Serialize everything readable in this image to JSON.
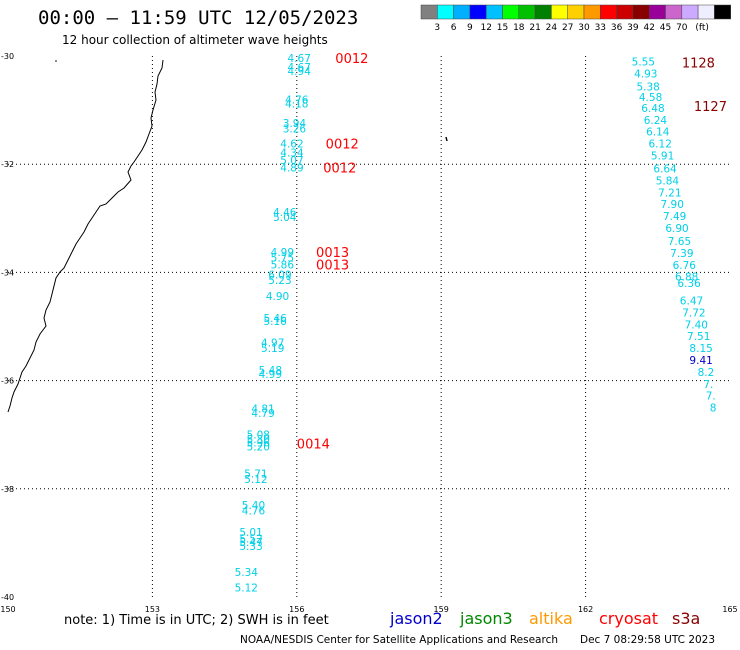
{
  "header": {
    "title": "00:00 — 11:59 UTC 12/05/2023",
    "subtitle": "12 hour collection of altimeter wave heights"
  },
  "legend": {
    "colors": [
      "#808080",
      "#00ffff",
      "#00b0ff",
      "#0000ff",
      "#00c0ff",
      "#00ff00",
      "#00c000",
      "#008000",
      "#ffff00",
      "#ffd000",
      "#ff9900",
      "#ff0000",
      "#cc0000",
      "#880000",
      "#990099",
      "#cc66cc",
      "#ccaaff",
      "#eeeeff",
      "#000000"
    ],
    "labels": [
      "3",
      "6",
      "9",
      "12",
      "15",
      "18",
      "21",
      "24",
      "27",
      "30",
      "33",
      "36",
      "39",
      "42",
      "45",
      "70",
      "(ft)"
    ]
  },
  "map": {
    "lon_ticks": [
      "150",
      "153",
      "156",
      "159",
      "162",
      "165"
    ],
    "lat_ticks": [
      "-30",
      "-32",
      "-34",
      "-36",
      "-38",
      "-40"
    ],
    "lon_range": [
      150,
      165
    ],
    "lat_range": [
      -30,
      -40
    ],
    "coastline_color": "#000000",
    "graticule_style": "dotted"
  },
  "swh_color": "#00d0e8",
  "swh_color_blue": "#0000cc",
  "pass_color_red": "#ff0000",
  "pass_color_dark": "#880000",
  "swh_track_west": [
    {
      "v": "4.67",
      "lon": 156.05,
      "lat": -30.04
    },
    {
      "v": "4.67",
      "lon": 156.05,
      "lat": -30.2
    },
    {
      "v": "4.94",
      "lon": 156.05,
      "lat": -30.28
    },
    {
      "v": "4.76",
      "lon": 156.0,
      "lat": -30.8
    },
    {
      "v": "4.18",
      "lon": 156.0,
      "lat": -30.88
    },
    {
      "v": "3.94",
      "lon": 155.95,
      "lat": -31.24
    },
    {
      "v": "3.26",
      "lon": 155.95,
      "lat": -31.34
    },
    {
      "v": "4.62",
      "lon": 155.9,
      "lat": -31.62
    },
    {
      "v": "4.34",
      "lon": 155.9,
      "lat": -31.78
    },
    {
      "v": "5.07",
      "lon": 155.9,
      "lat": -31.92
    },
    {
      "v": "4.89",
      "lon": 155.9,
      "lat": -32.06
    },
    {
      "v": "4.46",
      "lon": 155.75,
      "lat": -32.88
    },
    {
      "v": "5.04",
      "lon": 155.75,
      "lat": -32.98
    },
    {
      "v": "4.99",
      "lon": 155.7,
      "lat": -33.62
    },
    {
      "v": "5.75",
      "lon": 155.7,
      "lat": -33.72
    },
    {
      "v": "5.86",
      "lon": 155.7,
      "lat": -33.85
    },
    {
      "v": "6.09",
      "lon": 155.65,
      "lat": -34.04
    },
    {
      "v": "5.23",
      "lon": 155.65,
      "lat": -34.14
    },
    {
      "v": "4.90",
      "lon": 155.6,
      "lat": -34.44
    },
    {
      "v": "5.46",
      "lon": 155.55,
      "lat": -34.84
    },
    {
      "v": "5.16",
      "lon": 155.55,
      "lat": -34.9
    },
    {
      "v": "4.97",
      "lon": 155.5,
      "lat": -35.3
    },
    {
      "v": "5.19",
      "lon": 155.5,
      "lat": -35.4
    },
    {
      "v": "5.48",
      "lon": 155.45,
      "lat": -35.8
    },
    {
      "v": "4.99",
      "lon": 155.45,
      "lat": -35.88
    },
    {
      "v": "4.81",
      "lon": 155.3,
      "lat": -36.52
    },
    {
      "v": "4.79",
      "lon": 155.3,
      "lat": -36.6
    },
    {
      "v": "5.08",
      "lon": 155.2,
      "lat": -37.0
    },
    {
      "v": "5.30",
      "lon": 155.2,
      "lat": -37.08
    },
    {
      "v": "5.96",
      "lon": 155.2,
      "lat": -37.14
    },
    {
      "v": "5.20",
      "lon": 155.2,
      "lat": -37.22
    },
    {
      "v": "5.71",
      "lon": 155.15,
      "lat": -37.72
    },
    {
      "v": "5.12",
      "lon": 155.15,
      "lat": -37.82
    },
    {
      "v": "5.40",
      "lon": 155.1,
      "lat": -38.3
    },
    {
      "v": "4.76",
      "lon": 155.1,
      "lat": -38.4
    },
    {
      "v": "5.01",
      "lon": 155.05,
      "lat": -38.8
    },
    {
      "v": "5.52",
      "lon": 155.05,
      "lat": -38.92
    },
    {
      "v": "5.47",
      "lon": 155.05,
      "lat": -38.98
    },
    {
      "v": "5.33",
      "lon": 155.05,
      "lat": -39.06
    },
    {
      "v": "5.34",
      "lon": 154.95,
      "lat": -39.54
    },
    {
      "v": "5.12",
      "lon": 154.95,
      "lat": -39.82
    }
  ],
  "swh_track_east": [
    {
      "v": "5.55",
      "lon": 163.2,
      "lat": -30.1
    },
    {
      "v": "4.93",
      "lon": 163.25,
      "lat": -30.32
    },
    {
      "v": "5.38",
      "lon": 163.3,
      "lat": -30.56
    },
    {
      "v": "4.58",
      "lon": 163.35,
      "lat": -30.76
    },
    {
      "v": "6.48",
      "lon": 163.4,
      "lat": -30.96
    },
    {
      "v": "6.24",
      "lon": 163.45,
      "lat": -31.18
    },
    {
      "v": "6.14",
      "lon": 163.5,
      "lat": -31.4
    },
    {
      "v": "6.12",
      "lon": 163.55,
      "lat": -31.62
    },
    {
      "v": "5.91",
      "lon": 163.6,
      "lat": -31.84
    },
    {
      "v": "6.64",
      "lon": 163.65,
      "lat": -32.08
    },
    {
      "v": "5.84",
      "lon": 163.7,
      "lat": -32.3
    },
    {
      "v": "7.21",
      "lon": 163.75,
      "lat": -32.52
    },
    {
      "v": "7.90",
      "lon": 163.8,
      "lat": -32.74
    },
    {
      "v": "7.49",
      "lon": 163.85,
      "lat": -32.96
    },
    {
      "v": "6.90",
      "lon": 163.9,
      "lat": -33.18
    },
    {
      "v": "7.65",
      "lon": 163.95,
      "lat": -33.42
    },
    {
      "v": "7.39",
      "lon": 164.0,
      "lat": -33.64
    },
    {
      "v": "6.76",
      "lon": 164.05,
      "lat": -33.86
    },
    {
      "v": "6.88",
      "lon": 164.1,
      "lat": -34.08
    },
    {
      "v": "6.36",
      "lon": 164.15,
      "lat": -34.2
    },
    {
      "v": "6.47",
      "lon": 164.2,
      "lat": -34.52
    },
    {
      "v": "7.72",
      "lon": 164.25,
      "lat": -34.74
    },
    {
      "v": "7.40",
      "lon": 164.3,
      "lat": -34.96
    },
    {
      "v": "7.51",
      "lon": 164.35,
      "lat": -35.18
    },
    {
      "v": "8.15",
      "lon": 164.4,
      "lat": -35.4
    },
    {
      "v": "9.41",
      "lon": 164.4,
      "lat": -35.62,
      "blue": true
    },
    {
      "v": "8.2",
      "lon": 164.5,
      "lat": -35.84
    },
    {
      "v": "7.",
      "lon": 164.55,
      "lat": -36.06
    },
    {
      "v": "7.",
      "lon": 164.6,
      "lat": -36.28
    },
    {
      "v": "8",
      "lon": 164.65,
      "lat": -36.5
    }
  ],
  "pass_labels": [
    {
      "v": "0012",
      "lon": 156.8,
      "lat": -30.04,
      "dark": false
    },
    {
      "v": "0012",
      "lon": 156.6,
      "lat": -31.62,
      "dark": false
    },
    {
      "v": "0012",
      "lon": 156.55,
      "lat": -32.06,
      "dark": false
    },
    {
      "v": "0013",
      "lon": 156.4,
      "lat": -33.62,
      "dark": false
    },
    {
      "v": "0013",
      "lon": 156.4,
      "lat": -33.85,
      "dark": false
    },
    {
      "v": "0014",
      "lon": 156.0,
      "lat": -37.16,
      "dark": false
    },
    {
      "v": "1128",
      "lon": 164.0,
      "lat": -30.12,
      "dark": true
    },
    {
      "v": "1127",
      "lon": 164.25,
      "lat": -30.92,
      "dark": true
    }
  ],
  "footer": {
    "note": "note:  1) Time is in UTC;  2) SWH is in feet",
    "satellites": [
      {
        "name": "jason2",
        "color": "#0000cc"
      },
      {
        "name": "jason3",
        "color": "#008800"
      },
      {
        "name": "altika",
        "color": "#ff9900"
      },
      {
        "name": "cryosat",
        "color": "#ff0000"
      },
      {
        "name": "s3a",
        "color": "#880000"
      }
    ],
    "credit": "NOAA/NESDIS Center for Satellite Applications and Research",
    "credit_date": "Dec  7 08:29:58 UTC 2023"
  }
}
